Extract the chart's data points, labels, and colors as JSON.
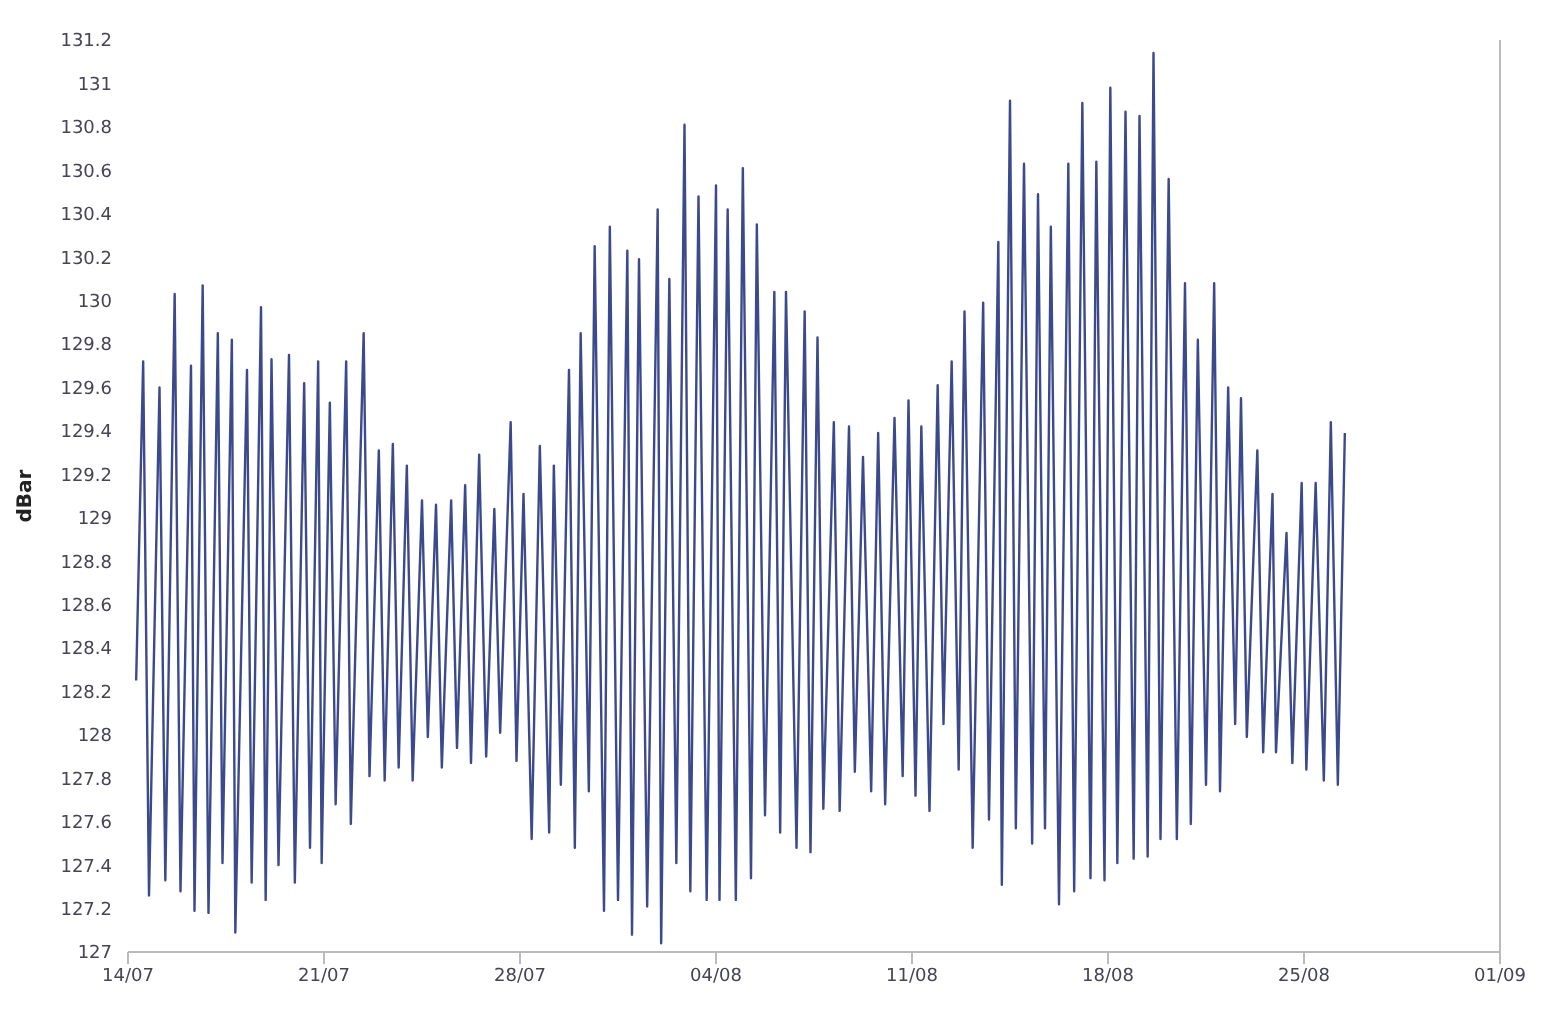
{
  "chart_data": {
    "type": "line",
    "ylabel": "dBar",
    "xlim": [
      "--07-14",
      "--09-01"
    ],
    "xticks": [
      {
        "value": "--07-14",
        "label": "14/07"
      },
      {
        "value": "--07-21",
        "label": "21/07"
      },
      {
        "value": "--07-28",
        "label": "28/07"
      },
      {
        "value": "--08-04",
        "label": "04/08"
      },
      {
        "value": "--08-11",
        "label": "11/08"
      },
      {
        "value": "--08-18",
        "label": "18/08"
      },
      {
        "value": "--08-25",
        "label": "25/08"
      },
      {
        "value": "--09-01",
        "label": "01/09"
      }
    ],
    "ylim": [
      127,
      131.2
    ],
    "yticks": [
      127,
      127.2,
      127.4,
      127.6,
      127.8,
      128,
      128.2,
      128.4,
      128.6,
      128.8,
      129,
      129.2,
      129.4,
      129.6,
      129.8,
      130,
      130.2,
      130.4,
      130.6,
      130.8,
      131,
      131.2
    ],
    "grid": false,
    "legend": false,
    "marker": "none",
    "line_style": "solid",
    "series": [
      {
        "color": "#3b4a8c",
        "x": [
          "--07-14T07:00",
          "--07-14T13:00",
          "--07-14T18:00",
          "--07-15T03:00",
          "--07-15T08:00",
          "--07-15T16:00",
          "--07-15T21:00",
          "--07-16T06:00",
          "--07-16T09:00",
          "--07-16T16:00",
          "--07-16T21:00",
          "--07-17T05:00",
          "--07-17T09:00",
          "--07-17T17:00",
          "--07-17T20:00",
          "--07-18T06:00",
          "--07-18T10:00",
          "--07-18T18:00",
          "--07-18T22:00",
          "--07-19T03:00",
          "--07-19T09:00",
          "--07-19T18:00",
          "--07-19T23:00",
          "--07-20T07:00",
          "--07-20T12:00",
          "--07-20T19:00",
          "--07-20T22:00",
          "--07-21T05:00",
          "--07-21T10:00",
          "--07-21T19:00",
          "--07-21T23:00",
          "--07-22T10:00",
          "--07-22T15:00",
          "--07-22T23:00",
          "--07-23T04:00",
          "--07-23T11:00",
          "--07-23T16:00",
          "--07-23T23:00",
          "--07-24T04:00",
          "--07-24T12:00",
          "--07-24T17:00",
          "--07-25T00:00",
          "--07-25T05:00",
          "--07-25T13:00",
          "--07-25T18:00",
          "--07-26T01:00",
          "--07-26T06:00",
          "--07-26T13:00",
          "--07-26T19:00",
          "--07-27T02:00",
          "--07-27T07:00",
          "--07-27T16:00",
          "--07-27T21:00",
          "--07-28T03:00",
          "--07-28T10:00",
          "--07-28T17:00",
          "--07-29T01:00",
          "--07-29T05:00",
          "--07-29T11:00",
          "--07-29T18:00",
          "--07-29T23:00",
          "--07-30T04:00",
          "--07-30T11:00",
          "--07-30T16:00",
          "--07-31T00:00",
          "--07-31T05:00",
          "--07-31T12:00",
          "--07-31T20:00",
          "--08-01T00:00",
          "--08-01T06:00",
          "--08-01T13:00",
          "--08-01T22:00",
          "--08-02T01:00",
          "--08-02T08:00",
          "--08-02T14:00",
          "--08-02T21:00",
          "--08-03T02:00",
          "--08-03T09:00",
          "--08-03T16:00",
          "--08-04T00:00",
          "--08-04T03:00",
          "--08-04T10:00",
          "--08-04T17:00",
          "--08-04T23:00",
          "--08-05T06:00",
          "--08-05T11:00",
          "--08-05T18:00",
          "--08-06T02:00",
          "--08-06T07:00",
          "--08-06T12:00",
          "--08-06T21:00",
          "--08-07T04:00",
          "--08-07T09:00",
          "--08-07T15:00",
          "--08-07T20:00",
          "--08-08T05:00",
          "--08-08T10:00",
          "--08-08T18:00",
          "--08-08T23:00",
          "--08-09T06:00",
          "--08-09T13:00",
          "--08-09T19:00",
          "--08-10T01:00",
          "--08-10T09:00",
          "--08-10T16:00",
          "--08-10T21:00",
          "--08-11T03:00",
          "--08-11T08:00",
          "--08-11T15:00",
          "--08-11T22:00",
          "--08-12T03:00",
          "--08-12T10:00",
          "--08-12T16:00",
          "--08-12T21:00",
          "--08-13T04:00",
          "--08-13T13:00",
          "--08-13T18:00",
          "--08-14T02:00",
          "--08-14T05:00",
          "--08-14T12:00",
          "--08-14T17:00",
          "--08-15T00:00",
          "--08-15T07:00",
          "--08-15T12:00",
          "--08-15T18:00",
          "--08-15T23:00",
          "--08-16T06:00",
          "--08-16T14:00",
          "--08-16T19:00",
          "--08-17T02:00",
          "--08-17T09:00",
          "--08-17T14:00",
          "--08-17T21:00",
          "--08-18T02:00",
          "--08-18T08:00",
          "--08-18T15:00",
          "--08-18T22:00",
          "--08-19T03:00",
          "--08-19T10:00",
          "--08-19T15:00",
          "--08-19T21:00",
          "--08-20T04:00",
          "--08-20T11:00",
          "--08-20T18:00",
          "--08-20T23:00",
          "--08-21T05:00",
          "--08-21T12:00",
          "--08-21T19:00",
          "--08-22T00:00",
          "--08-22T07:00",
          "--08-22T13:00",
          "--08-22T18:00",
          "--08-22T23:00",
          "--08-23T08:00",
          "--08-23T13:00",
          "--08-23T21:00",
          "--08-24T00:00",
          "--08-24T09:00",
          "--08-24T14:00",
          "--08-24T22:00",
          "--08-25T02:00",
          "--08-25T10:00",
          "--08-25T17:00",
          "--08-25T23:00",
          "--08-26T05:00",
          "--08-26T11:00"
        ],
        "values": [
          128.25,
          129.72,
          127.26,
          129.6,
          127.33,
          130.03,
          127.28,
          129.7,
          127.19,
          130.07,
          127.18,
          129.85,
          127.41,
          129.82,
          127.09,
          129.68,
          127.32,
          129.97,
          127.24,
          129.73,
          127.4,
          129.75,
          127.32,
          129.62,
          127.48,
          129.72,
          127.41,
          129.53,
          127.68,
          129.72,
          127.59,
          129.85,
          127.81,
          129.31,
          127.79,
          129.34,
          127.85,
          129.24,
          127.79,
          129.08,
          127.99,
          129.06,
          127.85,
          129.08,
          127.94,
          129.15,
          127.87,
          129.29,
          127.9,
          129.04,
          128.01,
          129.44,
          127.88,
          129.11,
          127.52,
          129.33,
          127.55,
          129.24,
          127.77,
          129.68,
          127.48,
          129.85,
          127.74,
          130.25,
          127.19,
          130.34,
          127.24,
          130.23,
          127.08,
          130.19,
          127.21,
          130.42,
          127.04,
          130.1,
          127.41,
          130.81,
          127.28,
          130.48,
          127.24,
          130.53,
          127.24,
          130.42,
          127.24,
          130.61,
          127.34,
          130.35,
          127.63,
          130.04,
          127.55,
          130.04,
          127.48,
          129.95,
          127.46,
          129.83,
          127.66,
          129.44,
          127.65,
          129.42,
          127.83,
          129.28,
          127.74,
          129.39,
          127.68,
          129.46,
          127.81,
          129.54,
          127.72,
          129.42,
          127.65,
          129.61,
          128.05,
          129.72,
          127.84,
          129.95,
          127.48,
          129.99,
          127.61,
          130.27,
          127.31,
          130.92,
          127.57,
          130.63,
          127.5,
          130.49,
          127.57,
          130.34,
          127.22,
          130.63,
          127.28,
          130.91,
          127.34,
          130.64,
          127.33,
          130.98,
          127.41,
          130.87,
          127.43,
          130.85,
          127.44,
          131.14,
          127.52,
          130.56,
          127.52,
          130.08,
          127.59,
          129.82,
          127.77,
          130.08,
          127.74,
          129.6,
          128.05,
          129.55,
          127.99,
          129.31,
          127.92,
          129.11,
          127.92,
          128.93,
          127.87,
          129.16,
          127.84,
          129.16,
          127.79,
          129.44,
          127.77,
          129.39
        ]
      }
    ]
  }
}
